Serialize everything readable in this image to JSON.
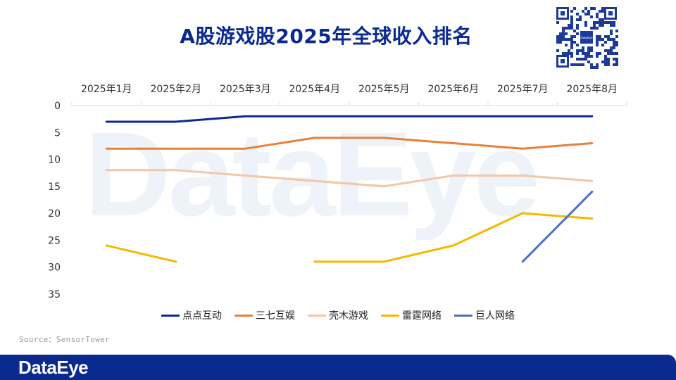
{
  "title": "A股游戏股2025年全球收入排名",
  "source": "Source：SensorTower",
  "brand": "DataEye",
  "watermark": "DataEye",
  "qr_center_text": "DataEye",
  "chart_data": {
    "type": "line",
    "categories": [
      "2025年1月",
      "2025年2月",
      "2025年3月",
      "2025年4月",
      "2025年5月",
      "2025年6月",
      "2025年7月",
      "2025年8月"
    ],
    "y_ticks": [
      0,
      5,
      10,
      15,
      20,
      25,
      30,
      35
    ],
    "ylim": [
      0,
      35
    ],
    "y_inverted": true,
    "x_axis_position": "top",
    "legend_position": "bottom",
    "series": [
      {
        "name": "点点互动",
        "color": "#0b2a8f",
        "values": [
          3,
          3,
          2,
          2,
          2,
          2,
          2,
          2
        ]
      },
      {
        "name": "三七互娱",
        "color": "#e8803a",
        "values": [
          8,
          8,
          8,
          6,
          6,
          7,
          8,
          7
        ]
      },
      {
        "name": "壳木游戏",
        "color": "#f2c7a8",
        "values": [
          12,
          12,
          13,
          14,
          15,
          13,
          13,
          14
        ]
      },
      {
        "name": "雷霆网络",
        "color": "#f5b800",
        "values": [
          26,
          29,
          null,
          29,
          29,
          26,
          20,
          21
        ]
      },
      {
        "name": "巨人网络",
        "color": "#4a72c0",
        "values": [
          null,
          null,
          null,
          null,
          null,
          null,
          29,
          16
        ]
      }
    ]
  }
}
